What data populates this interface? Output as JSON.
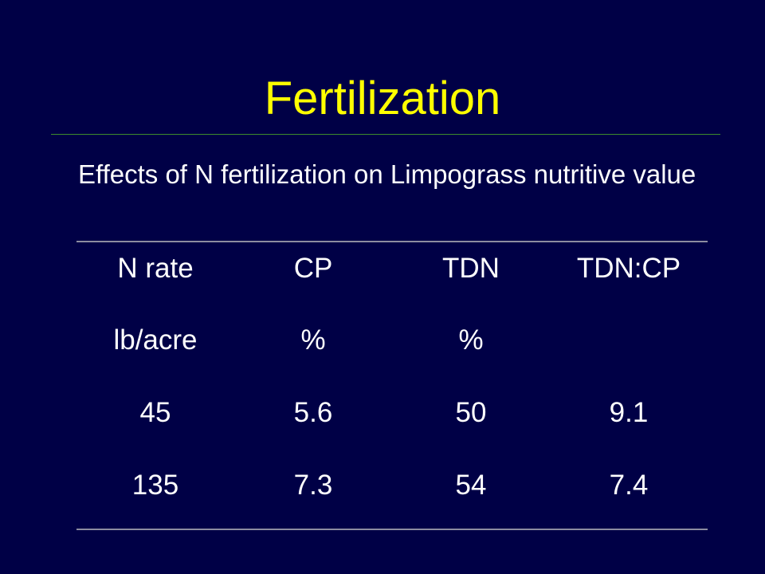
{
  "slide": {
    "title": "Fertilization",
    "subtitle": "Effects of N fertilization on Limpograss nutritive value"
  },
  "table": {
    "headers": [
      "N rate",
      "CP",
      "TDN",
      "TDN:CP"
    ],
    "units": [
      "lb/acre",
      "%",
      "%",
      ""
    ],
    "rows": [
      [
        "45",
        "5.6",
        "50",
        "9.1"
      ],
      [
        "135",
        "7.3",
        "54",
        "7.4"
      ]
    ]
  },
  "colors": {
    "background": "#000046",
    "title": "#ffff00",
    "text": "#ffffff",
    "title_rule": "#3d8a2c",
    "table_rule": "#8c8ca0"
  }
}
